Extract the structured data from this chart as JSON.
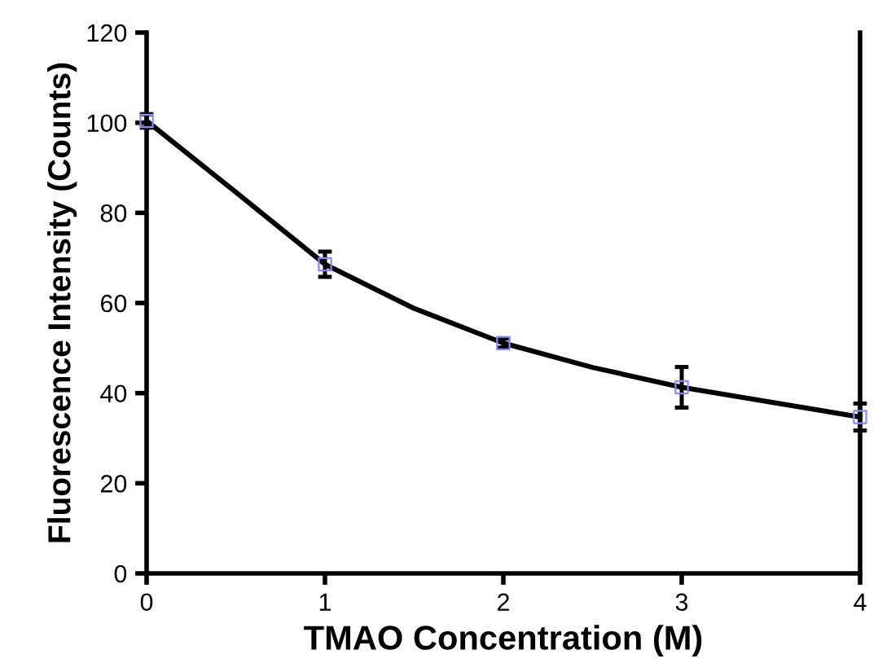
{
  "chart_data": {
    "type": "scatter",
    "xlabel": "TMAO Concentration (M)",
    "ylabel": "Fluorescence Intensity (Counts)",
    "xlim": [
      0,
      4
    ],
    "xticks": [
      0,
      1,
      2,
      3,
      4
    ],
    "ylim": [
      0,
      120
    ],
    "yticks": [
      0,
      20,
      40,
      60,
      80,
      100,
      120
    ],
    "grid": false,
    "legend": false,
    "series": [
      {
        "type": "line",
        "color": "#000000",
        "marker": "none",
        "line_style": "solid",
        "x": [
          0,
          0.5,
          1,
          1.5,
          2,
          2.5,
          3,
          3.5,
          4
        ],
        "values": [
          100.4,
          84.6,
          68.6,
          58.8,
          51.1,
          45.7,
          41.3,
          38,
          34.7
        ]
      },
      {
        "color": "#8888ff",
        "marker": "square",
        "x": [
          0,
          1,
          2,
          3,
          4
        ],
        "values": [
          100.4,
          68.6,
          51.1,
          41.3,
          34.7
        ],
        "errors": [
          1.5,
          2.8,
          1,
          4.5,
          3
        ]
      }
    ]
  }
}
